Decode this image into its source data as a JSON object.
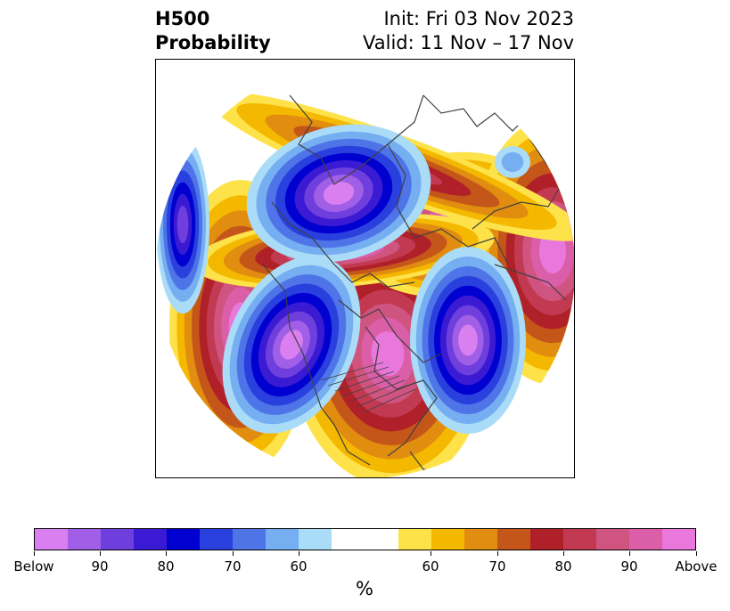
{
  "title": {
    "left_line1": "H500",
    "left_line2": "Probability",
    "right_line1": "Init: Fri 03 Nov 2023",
    "right_line2": "Valid: 11 Nov – 17 Nov"
  },
  "map": {
    "projection": "north polar stereographic",
    "below_colors": [
      "#d97ff0",
      "#a05fe6",
      "#6e3fdc",
      "#3a1ad2",
      "#0000d0",
      "#2a40de",
      "#4e74e8",
      "#76aef2",
      "#aadcf8"
    ],
    "neutral_color": "#ffffff",
    "above_colors": [
      "#fee24a",
      "#f5b800",
      "#e08d10",
      "#c5561a",
      "#b02028",
      "#c23a52",
      "#cf5480",
      "#db5ea8",
      "#e978dc"
    ]
  },
  "colorbar": {
    "colors": [
      "#d97ff0",
      "#a05fe6",
      "#6e3fdc",
      "#3a1ad2",
      "#0000d0",
      "#2a40de",
      "#4e74e8",
      "#76aef2",
      "#aadcf8",
      "#ffffff",
      "#ffffff",
      "#fee24a",
      "#f5b800",
      "#e08d10",
      "#c5561a",
      "#b02028",
      "#c23a52",
      "#cf5480",
      "#db5ea8",
      "#e978dc"
    ],
    "tick_labels": [
      "Below",
      "90",
      "80",
      "70",
      "60",
      "60",
      "70",
      "80",
      "90",
      "Above"
    ],
    "unit": "%"
  }
}
